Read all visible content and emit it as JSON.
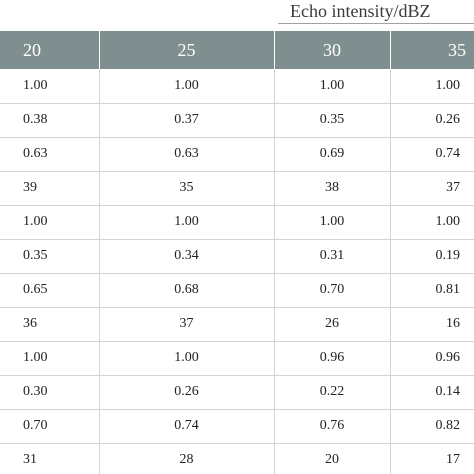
{
  "table": {
    "super_header": "Echo intensity/dBZ",
    "columns": [
      "20",
      "25",
      "30",
      "35"
    ],
    "rows": [
      [
        "1.00",
        "1.00",
        "1.00",
        "1.00"
      ],
      [
        "0.38",
        "0.37",
        "0.35",
        "0.26"
      ],
      [
        "0.63",
        "0.63",
        "0.69",
        "0.74"
      ],
      [
        "39",
        "35",
        "38",
        "37"
      ],
      [
        "1.00",
        "1.00",
        "1.00",
        "1.00"
      ],
      [
        "0.35",
        "0.34",
        "0.31",
        "0.19"
      ],
      [
        "0.65",
        "0.68",
        "0.70",
        "0.81"
      ],
      [
        "36",
        "37",
        "26",
        "16"
      ],
      [
        "1.00",
        "1.00",
        "0.96",
        "0.96"
      ],
      [
        "0.30",
        "0.26",
        "0.22",
        "0.14"
      ],
      [
        "0.70",
        "0.74",
        "0.76",
        "0.82"
      ],
      [
        "31",
        "28",
        "20",
        "17"
      ]
    ]
  },
  "colors": {
    "header_background": "#7f8f90",
    "header_text": "#ffffff",
    "grid_line": "#d4d4d4"
  }
}
